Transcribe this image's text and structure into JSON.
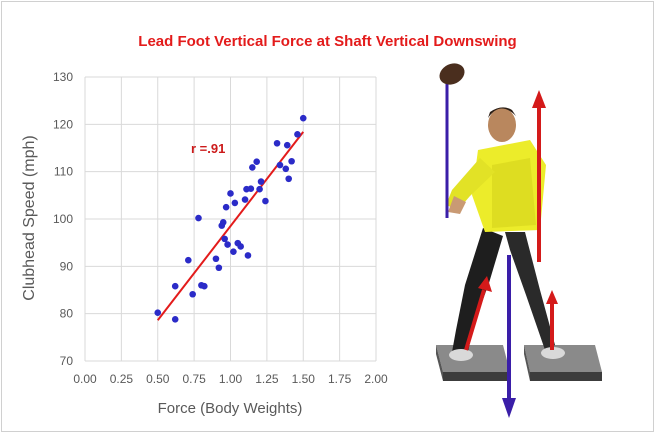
{
  "chart_data": {
    "type": "scatter",
    "title": "Lead Foot Vertical Force at Shaft Vertical Downswing",
    "xlabel": "Force (Body Weights)",
    "ylabel": "Clubhead Speed (mph)",
    "xlim": [
      0,
      2
    ],
    "ylim": [
      70,
      130
    ],
    "xticks": [
      "0.00",
      "0.25",
      "0.50",
      "0.75",
      "1.00",
      "1.25",
      "1.50",
      "1.75",
      "2.00"
    ],
    "yticks": [
      "70",
      "80",
      "90",
      "100",
      "110",
      "120",
      "130"
    ],
    "grid": true,
    "annotation": "r =.91",
    "points": [
      [
        0.5,
        80.2
      ],
      [
        0.62,
        78.8
      ],
      [
        0.62,
        85.8
      ],
      [
        0.71,
        91.3
      ],
      [
        0.74,
        84.1
      ],
      [
        0.78,
        100.2
      ],
      [
        0.8,
        86.0
      ],
      [
        0.82,
        85.8
      ],
      [
        0.9,
        91.6
      ],
      [
        0.92,
        89.7
      ],
      [
        0.94,
        98.6
      ],
      [
        0.95,
        99.3
      ],
      [
        0.96,
        95.8
      ],
      [
        0.97,
        102.5
      ],
      [
        0.98,
        94.6
      ],
      [
        1.0,
        105.4
      ],
      [
        1.02,
        93.1
      ],
      [
        1.03,
        103.4
      ],
      [
        1.05,
        94.9
      ],
      [
        1.07,
        94.2
      ],
      [
        1.1,
        104.1
      ],
      [
        1.11,
        106.3
      ],
      [
        1.12,
        92.3
      ],
      [
        1.14,
        106.4
      ],
      [
        1.15,
        110.9
      ],
      [
        1.18,
        112.1
      ],
      [
        1.2,
        106.3
      ],
      [
        1.21,
        107.9
      ],
      [
        1.24,
        103.8
      ],
      [
        1.32,
        116.0
      ],
      [
        1.34,
        111.4
      ],
      [
        1.38,
        110.6
      ],
      [
        1.39,
        115.6
      ],
      [
        1.4,
        108.5
      ],
      [
        1.42,
        112.2
      ],
      [
        1.46,
        117.9
      ],
      [
        1.5,
        121.3
      ]
    ],
    "trendline": [
      [
        0.5,
        78.6
      ],
      [
        1.5,
        118.4
      ]
    ],
    "colors": {
      "points": "#2b2bc8",
      "trendline": "#e31b1b",
      "title": "#e31b1b",
      "annotation": "#cc1a1a",
      "axis_text": "#595959",
      "grid": "#d9d9d9"
    }
  },
  "illustration": {
    "subject": "golfer-at-shaft-vertical-downswing",
    "force_arrow_color": "#d41a1a",
    "club_arrow_color": "#3a1ea8"
  }
}
